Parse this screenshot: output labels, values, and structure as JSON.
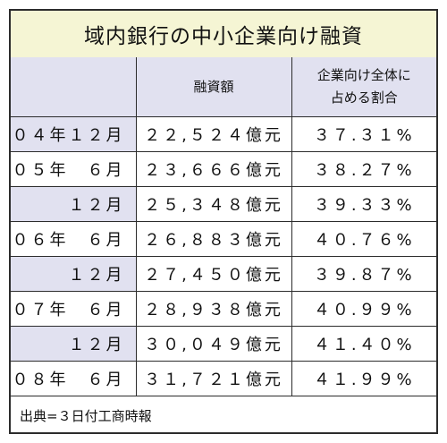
{
  "title": "域内銀行の中小企業向け融資",
  "headers": {
    "period": "",
    "amount": "融資額",
    "share_line1": "企業向け全体に",
    "share_line2": "占める割合"
  },
  "rows": [
    {
      "period": "０４年１２月",
      "amount": "２２,５２４億元",
      "share": "３７.３１%"
    },
    {
      "period": "０５年　６月",
      "amount": "２３,６６６億元",
      "share": "３８.２７%"
    },
    {
      "period": "１２月",
      "amount": "２５,３４８億元",
      "share": "３９.３３%"
    },
    {
      "period": "０６年　６月",
      "amount": "２６,８８３億元",
      "share": "４０.７６%"
    },
    {
      "period": "１２月",
      "amount": "２７,４５０億元",
      "share": "３９.８７%"
    },
    {
      "period": "０７年　６月",
      "amount": "２８,９３８億元",
      "share": "４０.９９%"
    },
    {
      "period": "１２月",
      "amount": "３０,０４９億元",
      "share": "４１.４０%"
    },
    {
      "period": "０８年　６月",
      "amount": "３１,７２１億元",
      "share": "４１.９９%"
    }
  ],
  "footer": "出典=３日付工商時報",
  "colors": {
    "title_bg": "#f5f5d4",
    "header_bg": "#e1e1f0",
    "border": "#2c2c2c"
  }
}
